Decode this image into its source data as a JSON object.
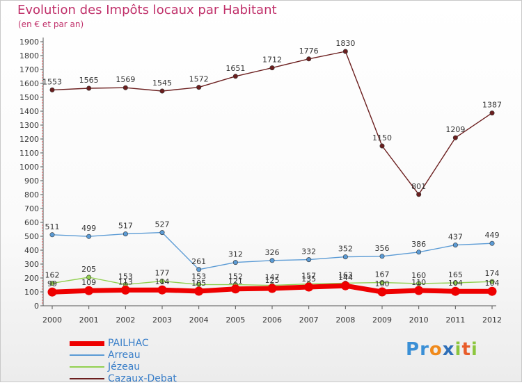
{
  "title": "Evolution des Impôts locaux par Habitant",
  "subtitle": "(en € et par an)",
  "brand": "Proxiti",
  "colors": {
    "PAILHAC": "#ee0000",
    "Arreau": "#5b9bd5",
    "Jézeau": "#92d050",
    "Cazaux-Debat": "#6b1e1e"
  },
  "chart_data": {
    "type": "line",
    "title": "Evolution des Impôts locaux par Habitant",
    "subtitle": "(en € et par an)",
    "xlabel": "",
    "ylabel": "",
    "ylim": [
      0,
      1900
    ],
    "yticks": [
      0,
      100,
      200,
      300,
      400,
      500,
      600,
      700,
      800,
      900,
      1000,
      1100,
      1200,
      1300,
      1400,
      1500,
      1600,
      1700,
      1800,
      1900
    ],
    "x": [
      "2000",
      "2001",
      "2002",
      "2003",
      "2004",
      "2005",
      "2006",
      "2007",
      "2008",
      "2009",
      "2010",
      "2011",
      "2012"
    ],
    "grid": false,
    "legend": "bottom-left",
    "series": [
      {
        "name": "PAILHAC",
        "color": "#ee0000",
        "values": [
          99,
          109,
          113,
          114,
          105,
          121,
          125,
          135,
          144,
          100,
          110,
          104,
          104
        ]
      },
      {
        "name": "Arreau",
        "color": "#5b9bd5",
        "values": [
          511,
          499,
          517,
          527,
          261,
          312,
          326,
          332,
          352,
          356,
          386,
          437,
          449
        ]
      },
      {
        "name": "Jézeau",
        "color": "#92d050",
        "values": [
          162,
          205,
          153,
          177,
          153,
          152,
          147,
          157,
          163,
          167,
          160,
          165,
          174
        ]
      },
      {
        "name": "Cazaux-Debat",
        "color": "#6b1e1e",
        "values": [
          1553,
          1565,
          1569,
          1545,
          1572,
          1651,
          1712,
          1776,
          1830,
          1150,
          801,
          1209,
          1387
        ]
      }
    ]
  }
}
